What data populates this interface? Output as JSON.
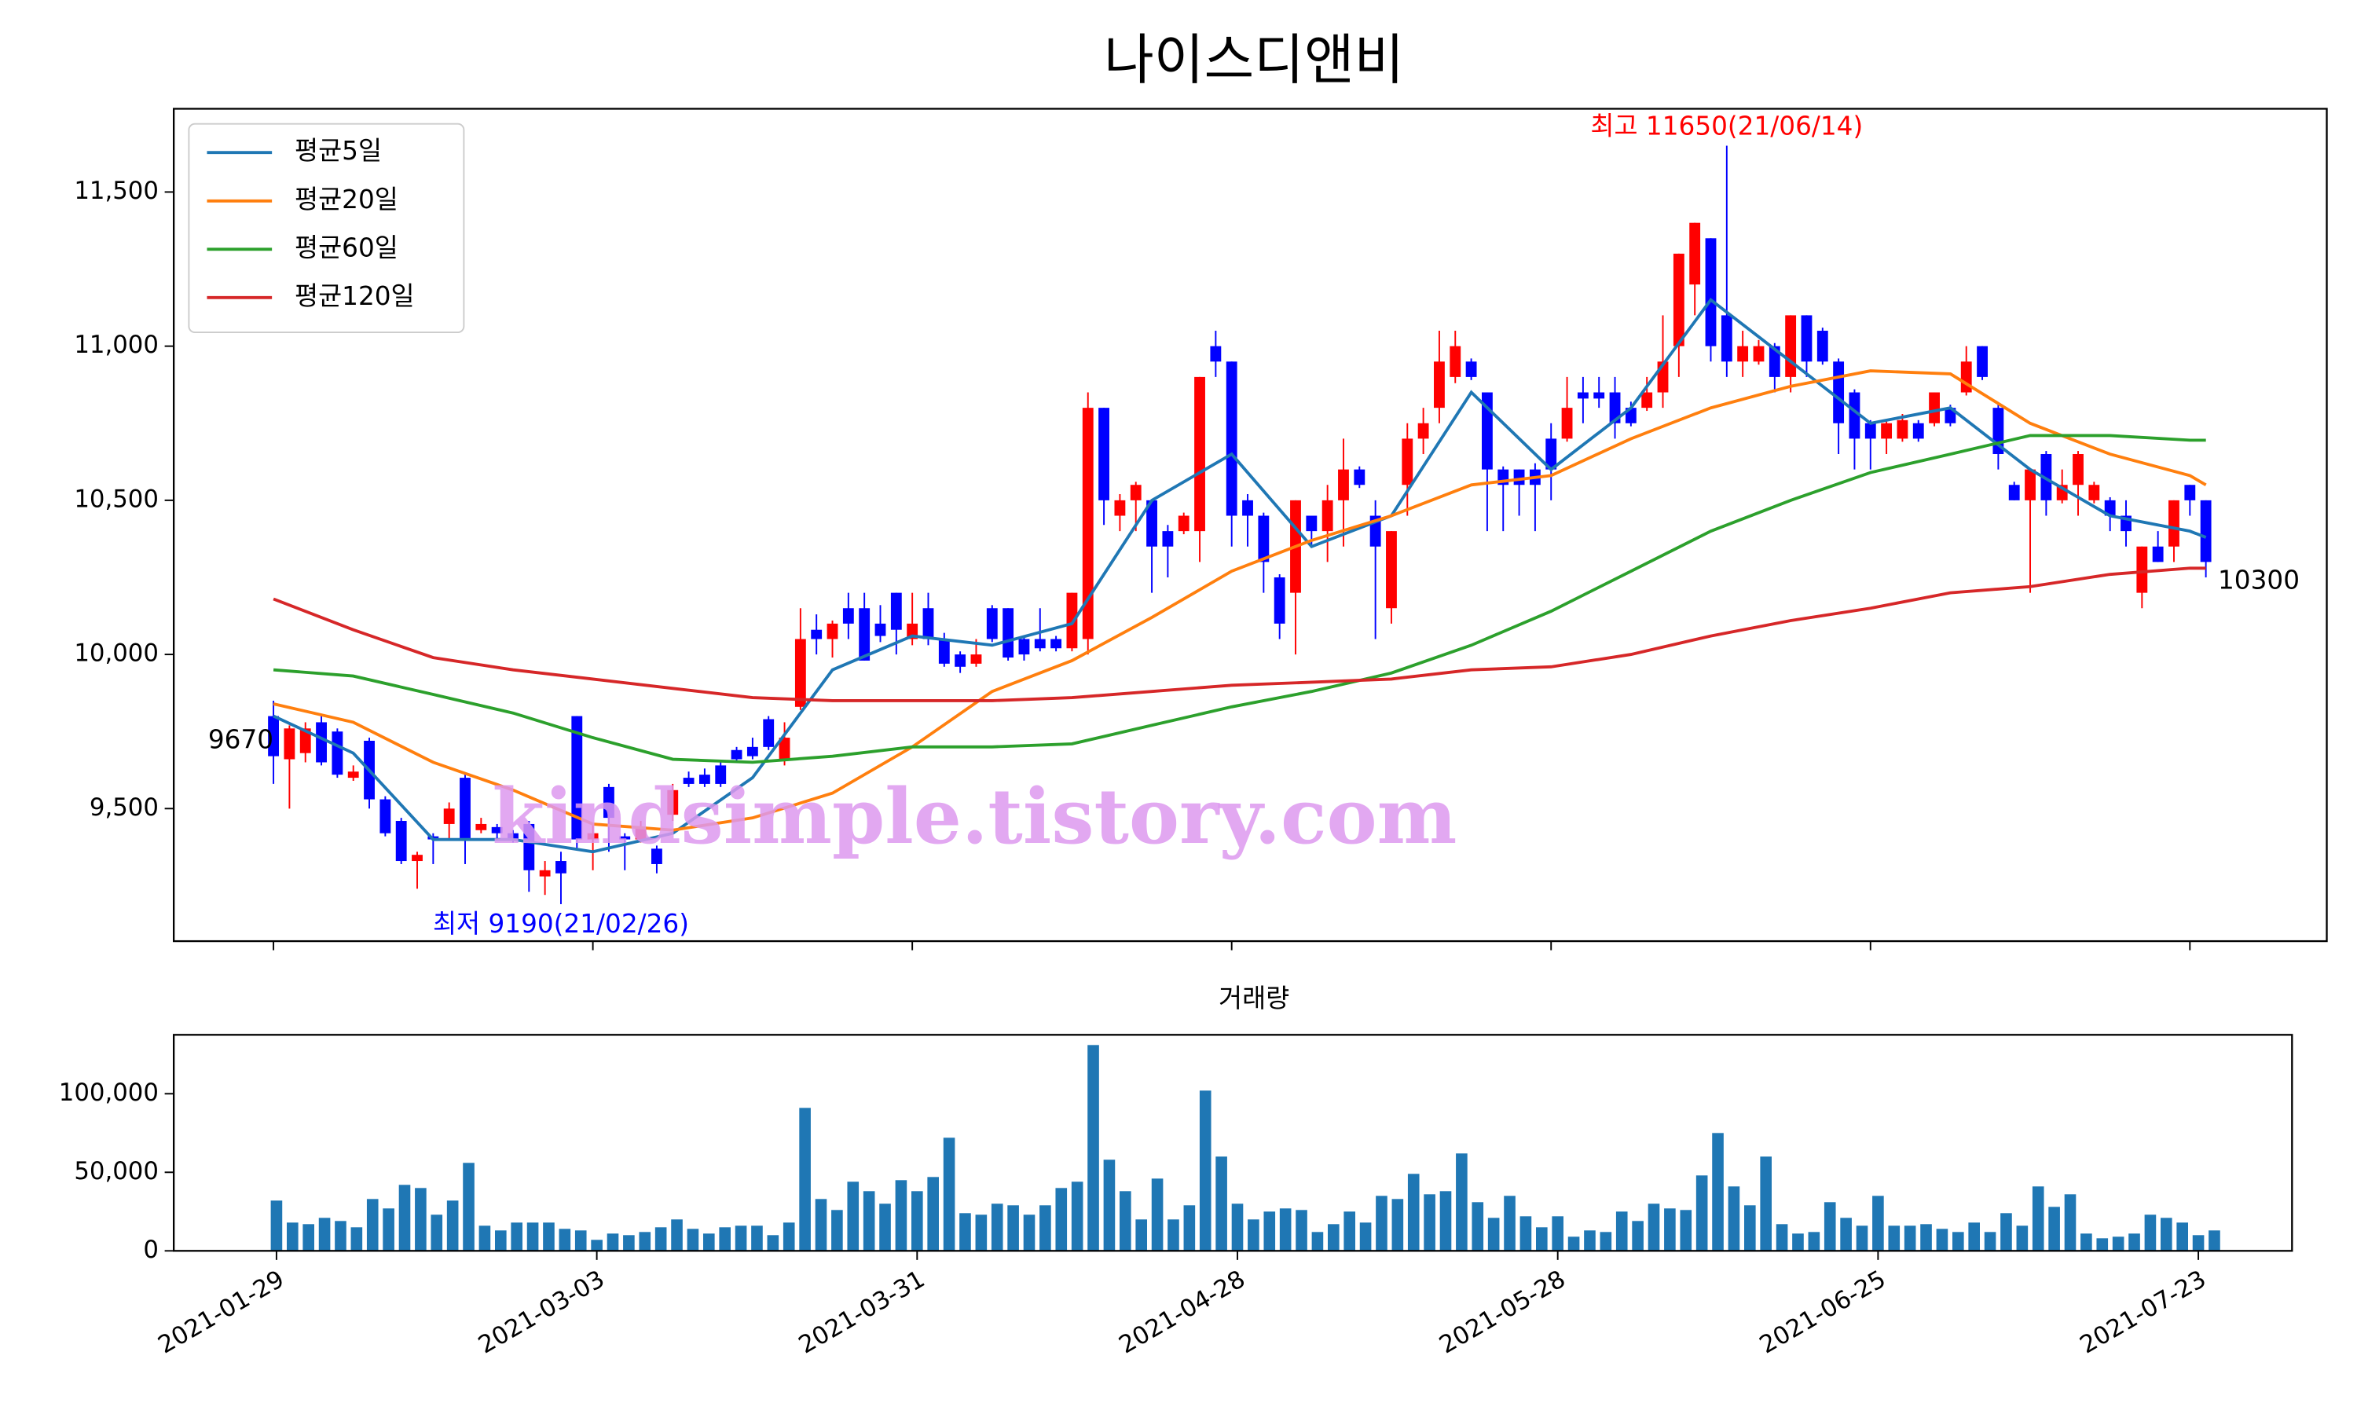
{
  "chart_data": [
    {
      "type": "candlestick",
      "title": "나이스디앤비",
      "watermark": "kindsimple.tistory.com",
      "up_color": "#ff0000",
      "down_color": "#0000ff",
      "open": [
        9800,
        9660,
        9680,
        9780,
        9750,
        9600,
        9720,
        9530,
        9460,
        9330,
        9410,
        9450,
        9600,
        9430,
        9440,
        9420,
        9450,
        9280,
        9330,
        9800,
        9400,
        9570,
        9410,
        9400,
        9370,
        9480,
        9600,
        9610,
        9640,
        9690,
        9700,
        9790,
        9660,
        9830,
        10080,
        10050,
        10150,
        10150,
        10100,
        10200,
        10050,
        10150,
        10050,
        10000,
        9970,
        10150,
        10150,
        10050,
        10050,
        10050,
        10020,
        10050,
        10800,
        10450,
        10500,
        10500,
        10400,
        10400,
        10400,
        11000,
        10950,
        10500,
        10450,
        10250,
        10200,
        10450,
        10400,
        10500,
        10600,
        10450,
        10150,
        10550,
        10700,
        10800,
        10900,
        10950,
        10850,
        10600,
        10600,
        10600,
        10700,
        10700,
        10850,
        10850,
        10850,
        10800,
        10800,
        10850,
        11000,
        11200,
        11350,
        11100,
        10950,
        10950,
        11000,
        10900,
        11100,
        11050,
        10950,
        10850,
        10750,
        10700,
        10700,
        10750,
        10750,
        10800,
        10850,
        11000,
        10800,
        10550,
        10500,
        10650,
        10500,
        10550,
        10500,
        10500,
        10450,
        10200,
        10350,
        10350,
        10550,
        10500
      ],
      "high": [
        9850,
        9770,
        9780,
        9800,
        9760,
        9640,
        9730,
        9540,
        9470,
        9360,
        9420,
        9520,
        9610,
        9470,
        9450,
        9430,
        9460,
        9330,
        9360,
        9800,
        9450,
        9580,
        9420,
        9460,
        9380,
        9580,
        9620,
        9630,
        9650,
        9700,
        9730,
        9800,
        9780,
        10150,
        10130,
        10110,
        10200,
        10200,
        10160,
        10200,
        10200,
        10200,
        10070,
        10010,
        10050,
        10160,
        10150,
        10060,
        10150,
        10060,
        10200,
        10850,
        10800,
        10520,
        10560,
        10500,
        10420,
        10460,
        10900,
        11050,
        10950,
        10520,
        10460,
        10260,
        10500,
        10450,
        10550,
        10700,
        10610,
        10500,
        10400,
        10750,
        10800,
        11050,
        11050,
        10960,
        10850,
        10610,
        10600,
        10620,
        10750,
        10900,
        10900,
        10900,
        10900,
        10820,
        10900,
        11100,
        11300,
        11400,
        11350,
        11650,
        11050,
        11020,
        11010,
        11100,
        11100,
        11060,
        10960,
        10860,
        10760,
        10760,
        10780,
        10760,
        10850,
        10810,
        11000,
        11000,
        10810,
        10560,
        10600,
        10660,
        10600,
        10660,
        10560,
        10510,
        10500,
        10350,
        10400,
        10500,
        10550,
        10500
      ],
      "low": [
        9580,
        9500,
        9650,
        9640,
        9600,
        9590,
        9500,
        9410,
        9320,
        9240,
        9320,
        9400,
        9320,
        9420,
        9400,
        9390,
        9230,
        9220,
        9190,
        9370,
        9300,
        9360,
        9300,
        9390,
        9290,
        9460,
        9570,
        9570,
        9570,
        9650,
        9660,
        9690,
        9640,
        9820,
        10000,
        9990,
        10050,
        9980,
        10040,
        10000,
        10030,
        10030,
        9960,
        9940,
        9960,
        10040,
        9980,
        9980,
        10010,
        10010,
        10010,
        10000,
        10420,
        10400,
        10400,
        10200,
        10250,
        10390,
        10300,
        10900,
        10350,
        10350,
        10200,
        10050,
        10000,
        10350,
        10300,
        10350,
        10540,
        10050,
        10100,
        10450,
        10650,
        10750,
        10880,
        10890,
        10400,
        10400,
        10450,
        10400,
        10500,
        10690,
        10750,
        10800,
        10700,
        10740,
        10790,
        10800,
        10900,
        11100,
        10950,
        10900,
        10900,
        10940,
        10850,
        10850,
        10900,
        10940,
        10650,
        10600,
        10600,
        10650,
        10690,
        10690,
        10740,
        10740,
        10840,
        10890,
        10600,
        10500,
        10200,
        10450,
        10490,
        10450,
        10490,
        10400,
        10350,
        10150,
        10300,
        10300,
        10450,
        10250
      ],
      "close": [
        9670,
        9760,
        9760,
        9650,
        9610,
        9620,
        9530,
        9420,
        9330,
        9350,
        9400,
        9500,
        9400,
        9450,
        9420,
        9400,
        9300,
        9300,
        9290,
        9400,
        9420,
        9470,
        9400,
        9440,
        9320,
        9560,
        9580,
        9580,
        9580,
        9660,
        9670,
        9700,
        9730,
        10050,
        10050,
        10100,
        10100,
        9980,
        10060,
        10080,
        10100,
        10050,
        9970,
        9960,
        10000,
        10050,
        9990,
        10000,
        10020,
        10020,
        10200,
        10800,
        10500,
        10500,
        10550,
        10350,
        10350,
        10450,
        10900,
        10950,
        10450,
        10450,
        10300,
        10100,
        10500,
        10400,
        10500,
        10600,
        10550,
        10350,
        10400,
        10700,
        10750,
        10950,
        11000,
        10900,
        10600,
        10550,
        10550,
        10550,
        10600,
        10800,
        10830,
        10830,
        10750,
        10750,
        10850,
        10950,
        11300,
        11400,
        11000,
        10950,
        11000,
        11000,
        10900,
        11100,
        10950,
        10950,
        10750,
        10700,
        10700,
        10750,
        10760,
        10700,
        10850,
        10750,
        10950,
        10900,
        10650,
        10500,
        10600,
        10500,
        10550,
        10650,
        10550,
        10450,
        10400,
        10350,
        10300,
        10500,
        10500,
        10300
      ],
      "series": [
        {
          "name": "평균5일",
          "color": "#1f77b4",
          "x": [
            0,
            5,
            10,
            15,
            20,
            25,
            30,
            35,
            40,
            45,
            50,
            55,
            60,
            65,
            70,
            75,
            80,
            85,
            90,
            95,
            100,
            105,
            110,
            115,
            120,
            121
          ],
          "values": [
            9800,
            9680,
            9400,
            9400,
            9360,
            9420,
            9600,
            9950,
            10060,
            10030,
            10100,
            10500,
            10650,
            10350,
            10450,
            10850,
            10600,
            10800,
            11150,
            10950,
            10750,
            10800,
            10600,
            10450,
            10400,
            10380
          ]
        },
        {
          "name": "평균20일",
          "color": "#ff7f0e",
          "x": [
            0,
            5,
            10,
            15,
            20,
            25,
            30,
            35,
            40,
            45,
            50,
            55,
            60,
            65,
            70,
            75,
            80,
            85,
            90,
            95,
            100,
            105,
            110,
            115,
            120,
            121
          ],
          "values": [
            9840,
            9780,
            9650,
            9560,
            9450,
            9430,
            9470,
            9550,
            9700,
            9880,
            9980,
            10120,
            10270,
            10370,
            10450,
            10550,
            10580,
            10700,
            10800,
            10870,
            10920,
            10910,
            10750,
            10650,
            10580,
            10550
          ]
        },
        {
          "name": "평균60일",
          "color": "#2ca02c",
          "x": [
            0,
            5,
            10,
            15,
            20,
            25,
            30,
            35,
            40,
            45,
            50,
            55,
            60,
            65,
            70,
            75,
            80,
            85,
            90,
            95,
            100,
            105,
            110,
            115,
            120,
            121
          ],
          "values": [
            9950,
            9930,
            9870,
            9810,
            9730,
            9660,
            9650,
            9670,
            9700,
            9700,
            9710,
            9770,
            9830,
            9880,
            9940,
            10030,
            10140,
            10270,
            10400,
            10500,
            10590,
            10650,
            10710,
            10710,
            10695,
            10695
          ]
        },
        {
          "name": "평균120일",
          "color": "#d62728",
          "x": [
            0,
            5,
            10,
            15,
            20,
            25,
            30,
            35,
            40,
            45,
            50,
            55,
            60,
            65,
            70,
            75,
            80,
            85,
            90,
            95,
            100,
            105,
            110,
            115,
            120,
            121
          ],
          "values": [
            10180,
            10080,
            9990,
            9950,
            9920,
            9890,
            9860,
            9850,
            9850,
            9850,
            9860,
            9880,
            9900,
            9910,
            9920,
            9950,
            9960,
            10000,
            10060,
            10110,
            10150,
            10200,
            10220,
            10260,
            10280,
            10280
          ]
        }
      ],
      "annotations": [
        {
          "kind": "max",
          "text": "최고 11650(21/06/14)",
          "color": "#ff0000"
        },
        {
          "kind": "min",
          "text": "최저 9190(21/02/26)",
          "color": "#0000ff"
        },
        {
          "kind": "first",
          "text": "9670",
          "color": "#000000"
        },
        {
          "kind": "last",
          "text": "10300",
          "color": "#000000"
        }
      ],
      "ylim": [
        9070,
        11770
      ],
      "yticks": [
        {
          "value": 9500,
          "label": "9,500"
        },
        {
          "value": 10000,
          "label": "10,000"
        },
        {
          "value": 10500,
          "label": "10,500"
        },
        {
          "value": 11000,
          "label": "11,000"
        },
        {
          "value": 11500,
          "label": "11,500"
        }
      ]
    },
    {
      "type": "bar",
      "title": "거래량",
      "color": "#1f77b4",
      "categories": [
        "2021-01-29",
        null,
        null,
        null,
        null,
        null,
        null,
        null,
        null,
        null,
        null,
        null,
        null,
        null,
        null,
        null,
        null,
        null,
        null,
        null,
        "2021-03-03",
        null,
        null,
        null,
        null,
        null,
        null,
        null,
        null,
        null,
        null,
        null,
        null,
        null,
        null,
        null,
        null,
        null,
        null,
        null,
        "2021-03-31",
        null,
        null,
        null,
        null,
        null,
        null,
        null,
        null,
        null,
        null,
        null,
        null,
        null,
        null,
        null,
        null,
        null,
        null,
        null,
        "2021-04-28",
        null,
        null,
        null,
        null,
        null,
        null,
        null,
        null,
        null,
        null,
        null,
        null,
        null,
        null,
        null,
        null,
        null,
        null,
        null,
        "2021-05-28",
        null,
        null,
        null,
        null,
        null,
        null,
        null,
        null,
        null,
        null,
        null,
        null,
        null,
        null,
        null,
        null,
        null,
        null,
        null,
        "2021-06-25",
        null,
        null,
        null,
        null,
        null,
        null,
        null,
        null,
        null,
        null,
        null,
        null,
        null,
        null,
        null,
        null,
        null,
        null,
        null,
        "2021-07-23",
        null
      ],
      "values": [
        32000,
        18000,
        17000,
        21000,
        19000,
        15000,
        33000,
        27000,
        42000,
        40000,
        23000,
        32000,
        56000,
        16000,
        13000,
        18000,
        18000,
        18000,
        14000,
        13000,
        7000,
        11000,
        10000,
        12000,
        15000,
        20000,
        14000,
        11000,
        15000,
        16000,
        16000,
        10000,
        18000,
        91000,
        33000,
        26000,
        44000,
        38000,
        30000,
        45000,
        38000,
        47000,
        72000,
        24000,
        23000,
        30000,
        29000,
        23000,
        29000,
        40000,
        44000,
        131000,
        58000,
        38000,
        20000,
        46000,
        20000,
        29000,
        102000,
        60000,
        30000,
        20000,
        25000,
        27000,
        26000,
        12000,
        17000,
        25000,
        18000,
        35000,
        33000,
        49000,
        36000,
        38000,
        62000,
        31000,
        21000,
        35000,
        22000,
        15000,
        22000,
        9000,
        13000,
        12000,
        25000,
        19000,
        30000,
        27000,
        26000,
        48000,
        75000,
        41000,
        29000,
        60000,
        17000,
        11000,
        12000,
        31000,
        21000,
        16000,
        35000,
        16000,
        16000,
        17000,
        14000,
        12000,
        18000,
        12000,
        24000,
        16000,
        41000,
        28000,
        36000,
        11000,
        8000,
        9000,
        11000,
        23000,
        21000,
        18000,
        10000,
        13000
      ],
      "ylim": [
        0,
        137500
      ],
      "yticks": [
        0,
        {
          "value": 50000,
          "label": "50,000"
        },
        {
          "value": 100000,
          "label": "100,000"
        }
      ]
    }
  ]
}
